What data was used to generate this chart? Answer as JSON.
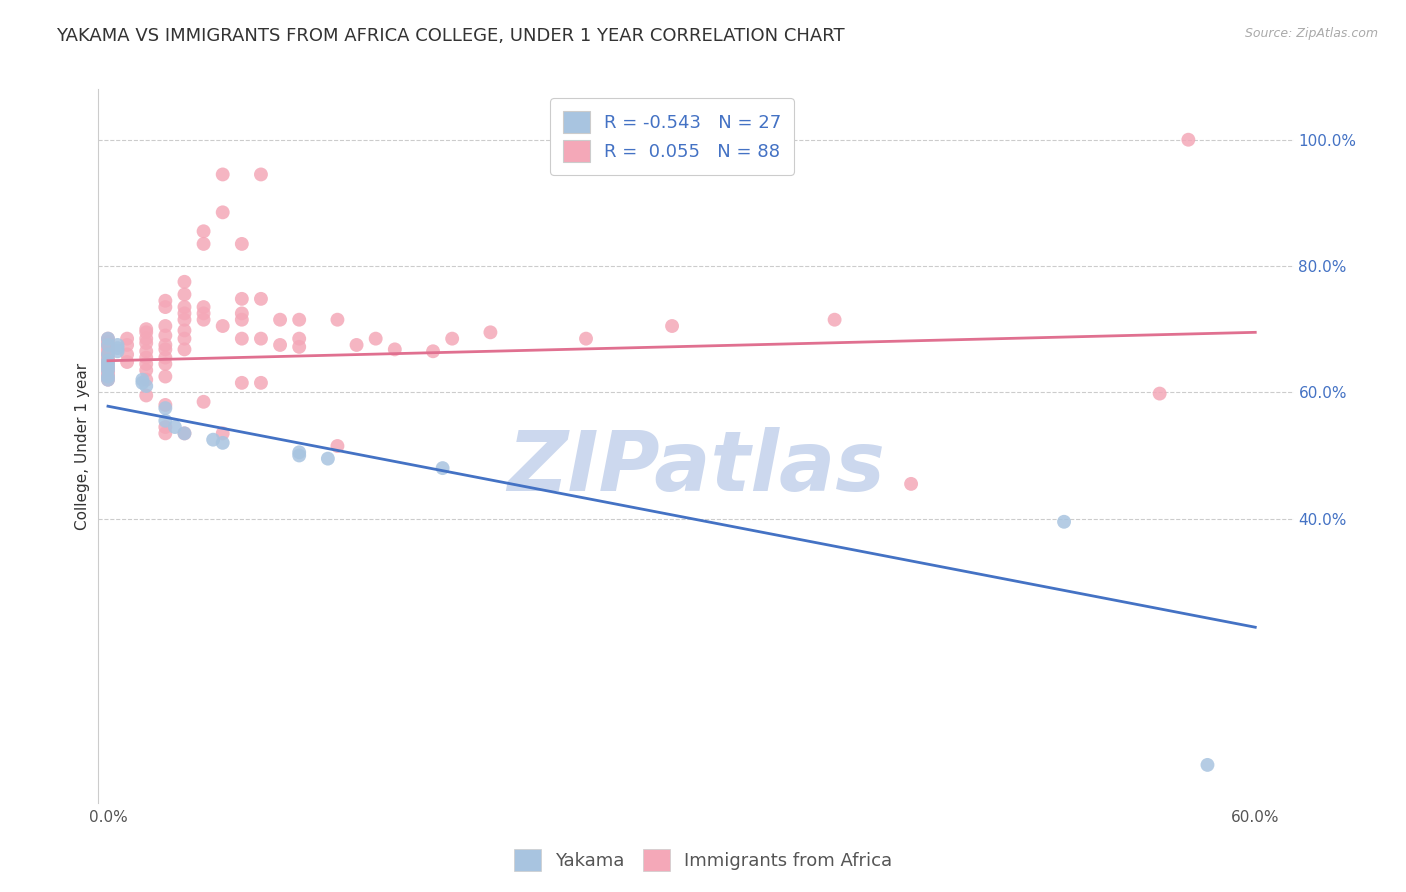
{
  "title": "YAKAMA VS IMMIGRANTS FROM AFRICA COLLEGE, UNDER 1 YEAR CORRELATION CHART",
  "source": "Source: ZipAtlas.com",
  "ylabel": "College, Under 1 year",
  "legend_yakama_R": "R = -0.543",
  "legend_yakama_N": "N = 27",
  "legend_africa_R": "R =  0.055",
  "legend_africa_N": "N = 88",
  "watermark": "ZIPatlas",
  "xlim": [
    -0.005,
    0.62
  ],
  "ylim": [
    -0.05,
    1.08
  ],
  "y_ticks": [
    0.4,
    0.6,
    0.8,
    1.0
  ],
  "y_tick_labels": [
    "40.0%",
    "60.0%",
    "80.0%",
    "100.0%"
  ],
  "x_ticks": [
    0.0,
    0.1,
    0.2,
    0.3,
    0.4,
    0.5,
    0.6
  ],
  "x_tick_labels": [
    "0.0%",
    "",
    "",
    "",
    "",
    "",
    "60.0%"
  ],
  "yakama_color": "#a8c4e0",
  "africa_color": "#f4a8b8",
  "yakama_line_color": "#4472c4",
  "africa_line_color": "#e07090",
  "yakama_scatter": [
    [
      0.0,
      0.685
    ],
    [
      0.0,
      0.675
    ],
    [
      0.005,
      0.675
    ],
    [
      0.005,
      0.67
    ],
    [
      0.005,
      0.665
    ],
    [
      0.0,
      0.66
    ],
    [
      0.0,
      0.65
    ],
    [
      0.0,
      0.645
    ],
    [
      0.0,
      0.64
    ],
    [
      0.0,
      0.635
    ],
    [
      0.0,
      0.625
    ],
    [
      0.0,
      0.62
    ],
    [
      0.018,
      0.62
    ],
    [
      0.018,
      0.615
    ],
    [
      0.02,
      0.61
    ],
    [
      0.03,
      0.575
    ],
    [
      0.03,
      0.555
    ],
    [
      0.035,
      0.545
    ],
    [
      0.04,
      0.535
    ],
    [
      0.055,
      0.525
    ],
    [
      0.06,
      0.52
    ],
    [
      0.1,
      0.505
    ],
    [
      0.1,
      0.5
    ],
    [
      0.115,
      0.495
    ],
    [
      0.175,
      0.48
    ],
    [
      0.5,
      0.395
    ],
    [
      0.575,
      0.01
    ]
  ],
  "africa_scatter": [
    [
      0.0,
      0.685
    ],
    [
      0.0,
      0.68
    ],
    [
      0.0,
      0.675
    ],
    [
      0.0,
      0.67
    ],
    [
      0.0,
      0.665
    ],
    [
      0.0,
      0.66
    ],
    [
      0.0,
      0.655
    ],
    [
      0.0,
      0.65
    ],
    [
      0.0,
      0.645
    ],
    [
      0.0,
      0.64
    ],
    [
      0.0,
      0.635
    ],
    [
      0.0,
      0.63
    ],
    [
      0.0,
      0.625
    ],
    [
      0.0,
      0.62
    ],
    [
      0.01,
      0.685
    ],
    [
      0.01,
      0.675
    ],
    [
      0.01,
      0.66
    ],
    [
      0.01,
      0.648
    ],
    [
      0.02,
      0.7
    ],
    [
      0.02,
      0.695
    ],
    [
      0.02,
      0.685
    ],
    [
      0.02,
      0.678
    ],
    [
      0.02,
      0.665
    ],
    [
      0.02,
      0.655
    ],
    [
      0.02,
      0.645
    ],
    [
      0.02,
      0.635
    ],
    [
      0.02,
      0.62
    ],
    [
      0.02,
      0.595
    ],
    [
      0.03,
      0.745
    ],
    [
      0.03,
      0.735
    ],
    [
      0.03,
      0.705
    ],
    [
      0.03,
      0.69
    ],
    [
      0.03,
      0.675
    ],
    [
      0.03,
      0.668
    ],
    [
      0.03,
      0.655
    ],
    [
      0.03,
      0.645
    ],
    [
      0.03,
      0.625
    ],
    [
      0.03,
      0.58
    ],
    [
      0.03,
      0.545
    ],
    [
      0.03,
      0.535
    ],
    [
      0.04,
      0.775
    ],
    [
      0.04,
      0.755
    ],
    [
      0.04,
      0.735
    ],
    [
      0.04,
      0.725
    ],
    [
      0.04,
      0.715
    ],
    [
      0.04,
      0.698
    ],
    [
      0.04,
      0.685
    ],
    [
      0.04,
      0.668
    ],
    [
      0.04,
      0.535
    ],
    [
      0.05,
      0.855
    ],
    [
      0.05,
      0.835
    ],
    [
      0.05,
      0.735
    ],
    [
      0.05,
      0.725
    ],
    [
      0.05,
      0.715
    ],
    [
      0.05,
      0.585
    ],
    [
      0.06,
      0.945
    ],
    [
      0.06,
      0.885
    ],
    [
      0.06,
      0.705
    ],
    [
      0.06,
      0.535
    ],
    [
      0.07,
      0.835
    ],
    [
      0.07,
      0.748
    ],
    [
      0.07,
      0.725
    ],
    [
      0.07,
      0.715
    ],
    [
      0.07,
      0.685
    ],
    [
      0.07,
      0.615
    ],
    [
      0.08,
      0.945
    ],
    [
      0.08,
      0.748
    ],
    [
      0.08,
      0.685
    ],
    [
      0.08,
      0.615
    ],
    [
      0.09,
      0.715
    ],
    [
      0.09,
      0.675
    ],
    [
      0.1,
      0.715
    ],
    [
      0.1,
      0.685
    ],
    [
      0.1,
      0.672
    ],
    [
      0.12,
      0.715
    ],
    [
      0.12,
      0.515
    ],
    [
      0.13,
      0.675
    ],
    [
      0.14,
      0.685
    ],
    [
      0.15,
      0.668
    ],
    [
      0.17,
      0.665
    ],
    [
      0.18,
      0.685
    ],
    [
      0.2,
      0.695
    ],
    [
      0.25,
      0.685
    ],
    [
      0.295,
      0.705
    ],
    [
      0.38,
      0.715
    ],
    [
      0.42,
      0.455
    ],
    [
      0.55,
      0.598
    ],
    [
      0.565,
      1.0
    ]
  ],
  "yakama_line_x": [
    0.0,
    0.6
  ],
  "yakama_line_y": [
    0.578,
    0.228
  ],
  "africa_line_x": [
    0.0,
    0.6
  ],
  "africa_line_y": [
    0.65,
    0.695
  ],
  "background_color": "#ffffff",
  "grid_color": "#cccccc",
  "title_fontsize": 13,
  "axis_label_fontsize": 11,
  "tick_fontsize": 11,
  "legend_fontsize": 13,
  "watermark_color": "#ccd8ee",
  "watermark_fontsize": 60,
  "right_ytick_color": "#4472c4",
  "scatter_size": 100
}
